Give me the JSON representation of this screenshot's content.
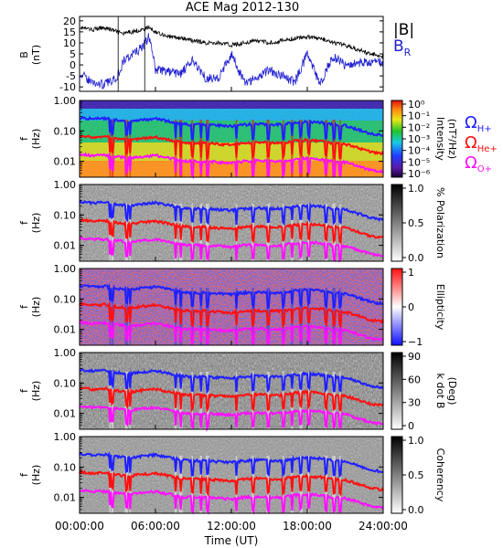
{
  "chart_data": {
    "title": "ACE Mag 2012-130",
    "xlabel": "Time (UT)",
    "xticks": [
      "00:00:00",
      "06:00:00",
      "12:00:00",
      "18:00:00",
      "24:00:00"
    ],
    "xrange_hours": [
      0,
      24
    ],
    "panels": [
      {
        "id": "bfield",
        "type": "line",
        "ylabel_lines": [
          "B",
          "(nT)"
        ],
        "ylim": [
          -12,
          22
        ],
        "yticks": [
          "20",
          "15",
          "10",
          "5",
          "0",
          "-5",
          "-10"
        ],
        "ytick_values": [
          20,
          15,
          10,
          5,
          0,
          -5,
          -10
        ],
        "legend": [
          {
            "label": "|B|",
            "color": "#000000"
          },
          {
            "label": "B",
            "sub": "R",
            "color": "#2020d0"
          }
        ],
        "series": [
          {
            "name": "|B|",
            "color": "#000000",
            "x": [
              0,
              1,
              2,
              3,
              3.5,
              4,
              5,
              5.5,
              6,
              7,
              8,
              9,
              10,
              11,
              12,
              13,
              14,
              15,
              16,
              17,
              18,
              19,
              20,
              21,
              22,
              23,
              24
            ],
            "y": [
              17,
              16,
              17,
              15,
              14,
              15,
              16,
              17,
              15,
              13,
              12,
              11,
              10,
              10,
              9,
              10,
              11,
              10,
              11,
              12,
              13,
              12,
              10,
              9,
              7,
              5,
              4
            ]
          },
          {
            "name": "B_R",
            "color": "#2020d0",
            "x": [
              0,
              1,
              2,
              3,
              3.5,
              4,
              5,
              5.5,
              6,
              7,
              8,
              9,
              10,
              11,
              12,
              13,
              14,
              15,
              16,
              17,
              18,
              19,
              20,
              21,
              22,
              23,
              24
            ],
            "y": [
              -4,
              -8,
              -9,
              -5,
              2,
              4,
              8,
              13,
              -2,
              -3,
              -4,
              2,
              -6,
              -6,
              5,
              -8,
              -6,
              -2,
              -5,
              -8,
              5,
              -9,
              4,
              0,
              1,
              1,
              1
            ]
          }
        ]
      },
      {
        "id": "spectrum",
        "type": "heatmap",
        "colormap": "rainbow",
        "ylabel_lines": [
          "f",
          "(Hz)"
        ],
        "yscale": "log",
        "ylim": [
          0.003,
          1.0
        ],
        "yticks": [
          "1.00",
          "0.10",
          "0.01"
        ],
        "ytick_values": [
          1.0,
          0.1,
          0.01
        ],
        "colorbar": {
          "label_lines": [
            "Intensity",
            "(nT²/Hz)"
          ],
          "ticks": [
            "10⁰",
            "10⁻¹",
            "10⁻²",
            "10⁻³",
            "10⁻⁴",
            "10⁻⁵",
            "10⁻⁶"
          ]
        },
        "legend": [
          {
            "label": "Ω",
            "sub": "H+",
            "color": "#2020ff"
          },
          {
            "label": "Ω",
            "sub": "He+",
            "color": "#ff1010"
          },
          {
            "label": "Ω",
            "sub": "O+",
            "color": "#ff10ff"
          }
        ]
      },
      {
        "id": "polarization",
        "type": "heatmap",
        "colormap": "gray",
        "ylabel_lines": [
          "f",
          "(Hz)"
        ],
        "yscale": "log",
        "ylim": [
          0.003,
          1.0
        ],
        "yticks": [
          "1.00",
          "0.10",
          "0.01"
        ],
        "ytick_values": [
          1.0,
          0.1,
          0.01
        ],
        "colorbar": {
          "label_lines": [
            "% Polarization"
          ],
          "ticks": [
            "1.0",
            "0.5",
            "0.0"
          ]
        }
      },
      {
        "id": "ellipticity",
        "type": "heatmap",
        "colormap": "bluewhitered",
        "ylabel_lines": [
          "f",
          "(Hz)"
        ],
        "yscale": "log",
        "ylim": [
          0.003,
          1.0
        ],
        "yticks": [
          "1.00",
          "0.10",
          "0.01"
        ],
        "ytick_values": [
          1.0,
          0.1,
          0.01
        ],
        "colorbar": {
          "label_lines": [
            "Ellipticity"
          ],
          "ticks": [
            "1",
            "0",
            "−1"
          ]
        }
      },
      {
        "id": "kdotb",
        "type": "heatmap",
        "colormap": "gray",
        "ylabel_lines": [
          "f",
          "(Hz)"
        ],
        "yscale": "log",
        "ylim": [
          0.003,
          1.0
        ],
        "yticks": [
          "1.00",
          "0.10",
          "0.01"
        ],
        "ytick_values": [
          1.0,
          0.1,
          0.01
        ],
        "colorbar": {
          "label_lines": [
            "k dot B",
            "(Deg)"
          ],
          "ticks": [
            "90",
            "60",
            "30",
            "0"
          ]
        }
      },
      {
        "id": "coherency",
        "type": "heatmap",
        "colormap": "gray",
        "ylabel_lines": [
          "f",
          "(Hz)"
        ],
        "yscale": "log",
        "ylim": [
          0.003,
          1.0
        ],
        "yticks": [
          "1.00",
          "0.10",
          "0.01"
        ],
        "ytick_values": [
          1.0,
          0.1,
          0.01
        ],
        "colorbar": {
          "label_lines": [
            "Coherency"
          ],
          "ticks": [
            "1.0",
            "0.5",
            "0.0"
          ]
        }
      }
    ],
    "gyro_lines": [
      {
        "name": "Ω_H+",
        "color": "#2020ff",
        "x": [
          0,
          1,
          2,
          3,
          4,
          5,
          6,
          7,
          8,
          9,
          10,
          11,
          12,
          13,
          14,
          15,
          16,
          17,
          18,
          19,
          20,
          21,
          22,
          23,
          24
        ],
        "y": [
          0.27,
          0.25,
          0.26,
          0.22,
          0.2,
          0.23,
          0.25,
          0.21,
          0.17,
          0.16,
          0.16,
          0.15,
          0.14,
          0.16,
          0.17,
          0.16,
          0.16,
          0.19,
          0.2,
          0.19,
          0.16,
          0.15,
          0.11,
          0.08,
          0.07
        ]
      },
      {
        "name": "Ω_He+",
        "color": "#ff1010",
        "x": [
          0,
          1,
          2,
          3,
          4,
          5,
          6,
          7,
          8,
          9,
          10,
          11,
          12,
          13,
          14,
          15,
          16,
          17,
          18,
          19,
          20,
          21,
          22,
          23,
          24
        ],
        "y": [
          0.068,
          0.062,
          0.065,
          0.055,
          0.05,
          0.058,
          0.062,
          0.052,
          0.042,
          0.04,
          0.04,
          0.037,
          0.035,
          0.04,
          0.042,
          0.04,
          0.04,
          0.047,
          0.05,
          0.047,
          0.04,
          0.037,
          0.028,
          0.02,
          0.018
        ]
      },
      {
        "name": "Ω_O+",
        "color": "#ff10ff",
        "x": [
          0,
          1,
          2,
          3,
          4,
          5,
          6,
          7,
          8,
          9,
          10,
          11,
          12,
          13,
          14,
          15,
          16,
          17,
          18,
          19,
          20,
          21,
          22,
          23,
          24
        ],
        "y": [
          0.017,
          0.0155,
          0.016,
          0.014,
          0.0125,
          0.0145,
          0.0155,
          0.013,
          0.0105,
          0.01,
          0.01,
          0.0093,
          0.0088,
          0.01,
          0.0105,
          0.01,
          0.01,
          0.0118,
          0.0125,
          0.0118,
          0.01,
          0.0093,
          0.007,
          0.005,
          0.0045
        ]
      }
    ],
    "dropout_hours": [
      2.4,
      2.6,
      3.7,
      4.0,
      7.6,
      8.0,
      8.9,
      9.6,
      10.1,
      12.4,
      13.7,
      14.9,
      16.1,
      16.8,
      17.5,
      18.1,
      19.5,
      20.1,
      20.6
    ]
  }
}
